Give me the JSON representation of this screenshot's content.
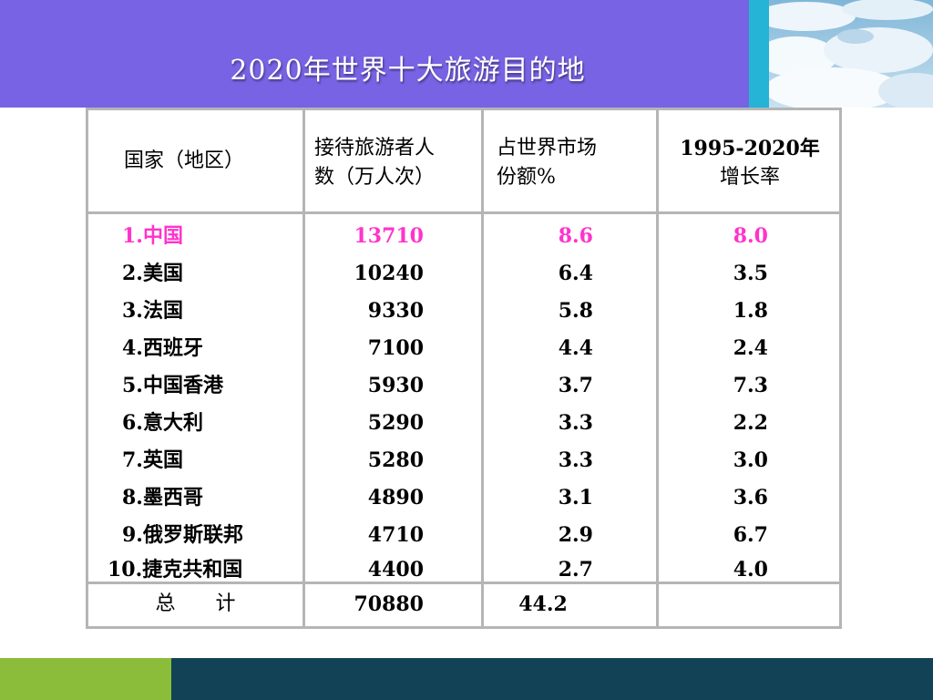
{
  "slide": {
    "title": "2020年世界十大旅游目的地"
  },
  "table": {
    "headers": {
      "country": "国家（地区）",
      "visitors_line1": "接待旅游者人",
      "visitors_line2": "数（万人次）",
      "share_line1": "占世界市场",
      "share_line2": "份额%",
      "growth_line1": "1995-2020年",
      "growth_line2": "增长率"
    },
    "rows": [
      {
        "country": "1.中国",
        "visitors": "13710",
        "share": "8.6",
        "growth": "8.0"
      },
      {
        "country": "2.美国",
        "visitors": "10240",
        "share": "6.4",
        "growth": "3.5"
      },
      {
        "country": "3.法国",
        "visitors": "9330",
        "share": "5.8",
        "growth": "1.8"
      },
      {
        "country": "4.西班牙",
        "visitors": "7100",
        "share": "4.4",
        "growth": "2.4"
      },
      {
        "country": "5.中国香港",
        "visitors": "5930",
        "share": "3.7",
        "growth": "7.3"
      },
      {
        "country": "6.意大利",
        "visitors": "5290",
        "share": "3.3",
        "growth": "2.2"
      },
      {
        "country": "7.英国",
        "visitors": "5280",
        "share": "3.3",
        "growth": "3.0"
      },
      {
        "country": "8.墨西哥",
        "visitors": "4890",
        "share": "3.1",
        "growth": "3.6"
      },
      {
        "country": "9.俄罗斯联邦",
        "visitors": "4710",
        "share": "2.9",
        "growth": "6.7"
      },
      {
        "country": "10.捷克共和国",
        "visitors": "4400",
        "share": "2.7",
        "growth": "4.0"
      }
    ],
    "total": {
      "label": "总　　计",
      "visitors": "70880",
      "share": "44.2",
      "growth": ""
    }
  },
  "colors": {
    "title_bar": "#7763e4",
    "accent_strip": "#25b3d6",
    "highlight_row": "#ff33cc",
    "footer_green": "#8bbd3a",
    "footer_navy": "#114256"
  }
}
